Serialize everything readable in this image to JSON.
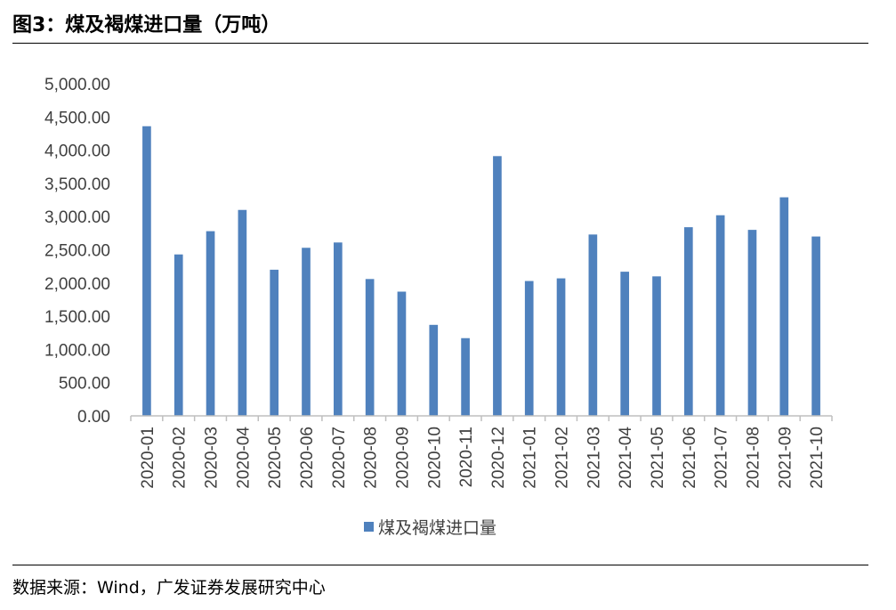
{
  "figure": {
    "title": "图3：煤及褐煤进口量（万吨）",
    "source": "数据来源：Wind，广发证券发展研究中心"
  },
  "colors": {
    "bar": "#4f81bd",
    "axis": "#bfbfbf",
    "text": "#404040"
  },
  "chart_data": {
    "type": "bar",
    "title": "煤及褐煤进口量（万吨）",
    "xlabel": "",
    "ylabel": "",
    "ylim": [
      0,
      5000
    ],
    "yticks": [
      "0.00",
      "500.00",
      "1,000.00",
      "1,500.00",
      "2,000.00",
      "2,500.00",
      "3,000.00",
      "3,500.00",
      "4,000.00",
      "4,500.00",
      "5,000.00"
    ],
    "grid": false,
    "legend_position": "bottom",
    "categories": [
      "2020-01",
      "2020-02",
      "2020-03",
      "2020-04",
      "2020-05",
      "2020-06",
      "2020-07",
      "2020-08",
      "2020-09",
      "2020-10",
      "2020-11",
      "2020-12",
      "2021-01",
      "2021-02",
      "2021-03",
      "2021-04",
      "2021-05",
      "2021-06",
      "2021-07",
      "2021-08",
      "2021-09",
      "2021-10"
    ],
    "series": [
      {
        "name": "煤及褐煤进口量",
        "values": [
          4360,
          2430,
          2780,
          3100,
          2200,
          2530,
          2610,
          2060,
          1870,
          1370,
          1170,
          3910,
          2030,
          2070,
          2730,
          2170,
          2100,
          2840,
          3020,
          2800,
          3290,
          2700
        ]
      }
    ]
  }
}
